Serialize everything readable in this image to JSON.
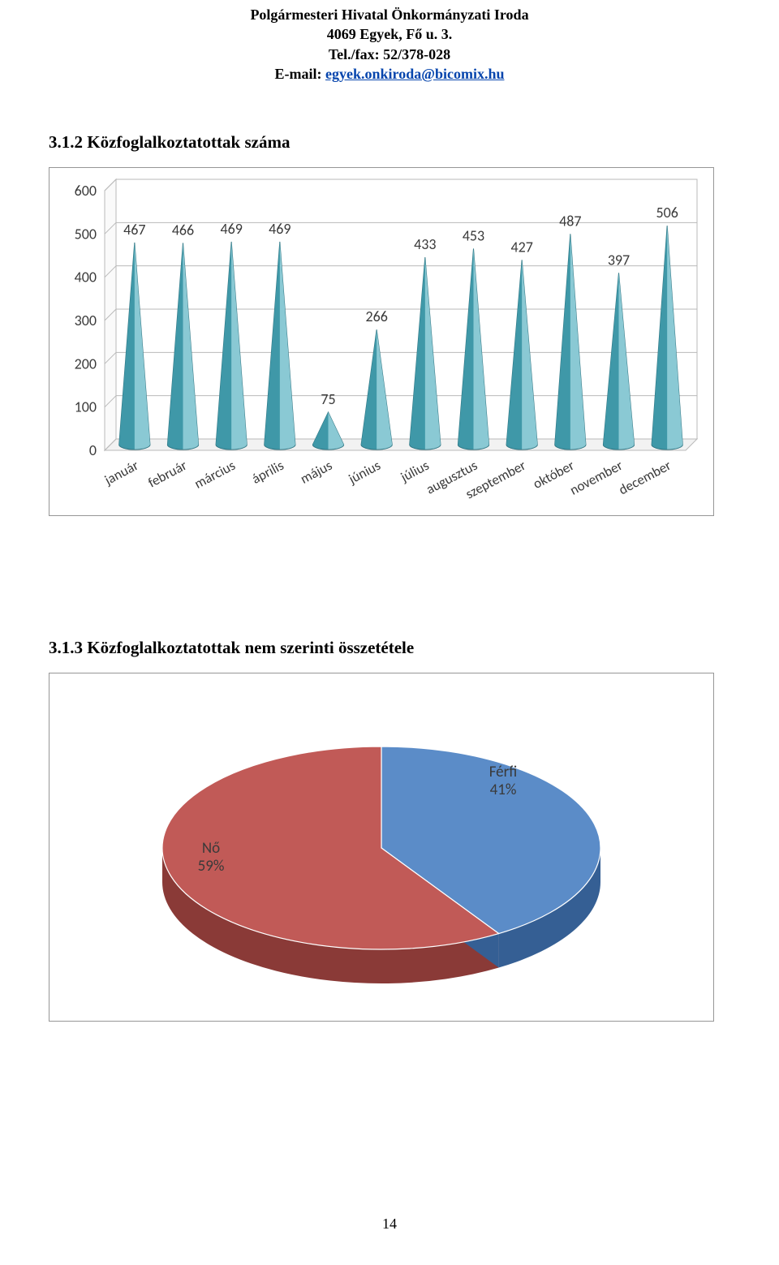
{
  "header": {
    "line1": "Polgármesteri Hivatal Önkormányzati Iroda",
    "line2": "4069 Egyek, Fő u. 3.",
    "line3": "Tel./fax: 52/378-028",
    "line4_prefix": "E-mail: ",
    "email": "egyek.onkiroda@bicomix.hu",
    "email_color": "#0645ad"
  },
  "section1": {
    "title": "3.1.2 Közfoglalkoztatottak száma",
    "chart": {
      "type": "cone3d-column",
      "categories": [
        "január",
        "február",
        "március",
        "április",
        "május",
        "június",
        "július",
        "augusztus",
        "szeptember",
        "október",
        "november",
        "december"
      ],
      "values": [
        467,
        466,
        469,
        469,
        75,
        266,
        433,
        453,
        427,
        487,
        397,
        506
      ],
      "y_ticks": [
        0,
        100,
        200,
        300,
        400,
        500,
        600
      ],
      "y_max": 600,
      "grid_color": "#b9b9b9",
      "plot_bg_top": "#ffffff",
      "plot_bg_bottom": "#ffffff",
      "cone_top_color": "#8ecbd6",
      "cone_side_color": "#3f98a8",
      "cone_edge_color": "#2e7380",
      "label_color": "#3a3a3a",
      "label_fontsize": 18,
      "cat_label_fontsize": 17,
      "tick_label_fontsize": 18,
      "cat_label_color": "#3a3a3a"
    }
  },
  "section2": {
    "title": "3.1.3 Közfoglalkoztatottak nem szerinti összetétele",
    "chart": {
      "type": "pie3d",
      "slices": [
        {
          "name": "Férfi",
          "pct": 41,
          "label": "Férfi",
          "label2": "41%",
          "fill_top": "#5b8cc8",
          "fill_side": "#355f94"
        },
        {
          "name": "Nő",
          "pct": 59,
          "label": "Nő",
          "label2": "59%",
          "fill_top": "#c15a57",
          "fill_side": "#8a3a37"
        }
      ],
      "label_color": "#3a3a3a",
      "label_fontsize": 19
    }
  },
  "page_number": "14"
}
